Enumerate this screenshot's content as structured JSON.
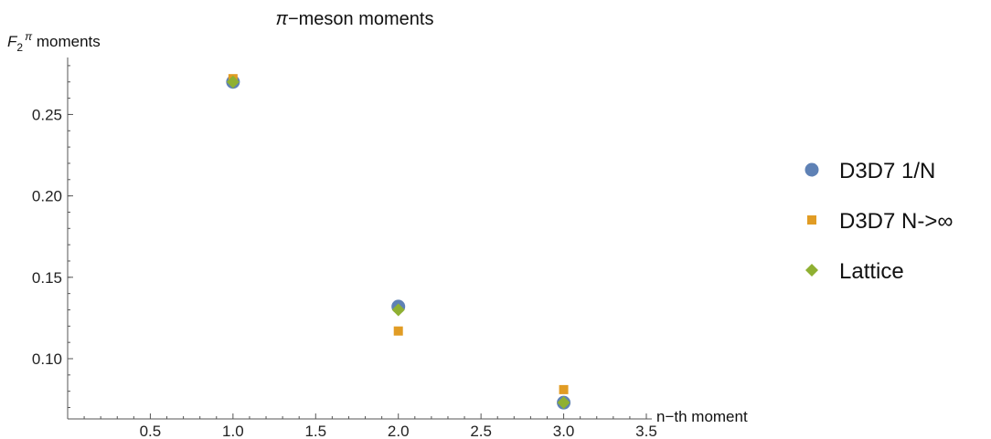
{
  "chart_data": {
    "type": "scatter",
    "title_prefix": "π",
    "title_rest": "−meson moments",
    "ylabel_main": "F",
    "ylabel_sub": "2",
    "ylabel_sup": "π",
    "ylabel_rest": " moments",
    "xlabel": "n−th moment",
    "xlim": [
      0,
      3.5
    ],
    "ylim": [
      0.063,
      0.285
    ],
    "x_ticks": [
      0.5,
      1.0,
      1.5,
      2.0,
      2.5,
      3.0,
      3.5
    ],
    "x_tick_labels": [
      "0.5",
      "1.0",
      "1.5",
      "2.0",
      "2.5",
      "3.0",
      "3.5"
    ],
    "y_ticks": [
      0.1,
      0.15,
      0.2,
      0.25
    ],
    "y_tick_labels": [
      "0.10",
      "0.15",
      "0.20",
      "0.25"
    ],
    "grid": false,
    "legend_position": "right",
    "series": [
      {
        "name": "D3D7 1/N",
        "marker": "circle",
        "color": "#5e81b5",
        "points": [
          [
            1,
            0.27
          ],
          [
            2,
            0.132
          ],
          [
            3,
            0.073
          ]
        ]
      },
      {
        "name": "D3D7 N->∞",
        "marker": "square",
        "color": "#e19c24",
        "points": [
          [
            1,
            0.272
          ],
          [
            2,
            0.117
          ],
          [
            3,
            0.081
          ]
        ]
      },
      {
        "name": "Lattice",
        "marker": "diamond",
        "color": "#8fb032",
        "points": [
          [
            1,
            0.27
          ],
          [
            2,
            0.13
          ],
          [
            3,
            0.073
          ]
        ]
      }
    ]
  }
}
